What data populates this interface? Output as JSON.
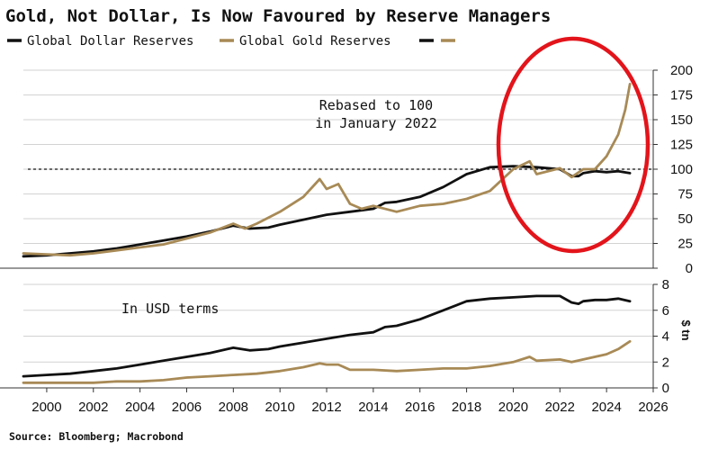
{
  "title": "Gold, Not Dollar, Is Now Favoured by Reserve Managers",
  "source": "Source: Bloomberg; Macrobond",
  "colors": {
    "dollar": "#111111",
    "gold": "#a88a56",
    "highlight": "#e3141b",
    "grid": "#d2d2d2"
  },
  "legend": [
    {
      "label": "Global Dollar Reserves",
      "color": "#111111"
    },
    {
      "label": "Global Gold Reserves",
      "color": "#a88a56"
    }
  ],
  "chart_data": [
    {
      "type": "line",
      "panel": "top",
      "annotation": [
        "Rebased to 100",
        "in January 2022"
      ],
      "reference_line": 100,
      "ylim": [
        0,
        200
      ],
      "yticks": [
        0,
        25,
        50,
        75,
        100,
        125,
        150,
        175,
        200
      ],
      "highlight": "red ellipse around 2019.5–2025.5 region",
      "series": [
        {
          "name": "Global Dollar Reserves",
          "x": [
            1999,
            2000,
            2001,
            2002,
            2003,
            2004,
            2005,
            2006,
            2007,
            2008,
            2008.7,
            2009.5,
            2010,
            2011,
            2012,
            2013,
            2014,
            2014.5,
            2015,
            2016,
            2017,
            2018,
            2019,
            2020,
            2021,
            2022,
            2022.5,
            2022.8,
            2023,
            2023.5,
            2024,
            2024.5,
            2025
          ],
          "values": [
            12,
            13,
            15,
            17,
            20,
            24,
            28,
            32,
            37,
            43,
            40,
            41,
            44,
            49,
            54,
            57,
            60,
            66,
            67,
            72,
            82,
            95,
            102,
            103,
            102,
            100,
            93,
            93,
            96,
            98,
            97,
            98,
            96
          ]
        },
        {
          "name": "Global Gold Reserves",
          "x": [
            1999,
            2000,
            2001,
            2002,
            2003,
            2004,
            2005,
            2006,
            2007,
            2008,
            2008.5,
            2009,
            2010,
            2011,
            2011.7,
            2012,
            2012.5,
            2013,
            2013.5,
            2014,
            2015,
            2016,
            2017,
            2018,
            2019,
            2020,
            2020.7,
            2021,
            2022,
            2022.5,
            2023,
            2023.5,
            2024,
            2024.5,
            2024.8,
            2025
          ],
          "values": [
            15,
            14,
            13,
            15,
            18,
            21,
            24,
            30,
            36,
            45,
            40,
            45,
            57,
            72,
            90,
            80,
            85,
            65,
            60,
            63,
            57,
            63,
            65,
            70,
            78,
            100,
            108,
            95,
            101,
            92,
            100,
            100,
            113,
            135,
            160,
            186
          ]
        }
      ]
    },
    {
      "type": "line",
      "panel": "bottom",
      "annotation": "In USD terms",
      "ylabel": "$ tn",
      "ylim": [
        0,
        8
      ],
      "yticks": [
        0,
        2,
        4,
        6,
        8
      ],
      "xlim": [
        1999,
        2026
      ],
      "xticks": [
        2000,
        2002,
        2004,
        2006,
        2008,
        2010,
        2012,
        2014,
        2016,
        2018,
        2020,
        2022,
        2024,
        2026
      ],
      "series": [
        {
          "name": "Global Dollar Reserves",
          "x": [
            1999,
            2000,
            2001,
            2002,
            2003,
            2004,
            2005,
            2006,
            2007,
            2008,
            2008.7,
            2009.5,
            2010,
            2011,
            2012,
            2013,
            2014,
            2014.5,
            2015,
            2016,
            2017,
            2018,
            2019,
            2020,
            2021,
            2022,
            2022.5,
            2022.8,
            2023,
            2023.5,
            2024,
            2024.5,
            2025
          ],
          "values": [
            0.9,
            1.0,
            1.1,
            1.3,
            1.5,
            1.8,
            2.1,
            2.4,
            2.7,
            3.1,
            2.9,
            3.0,
            3.2,
            3.5,
            3.8,
            4.1,
            4.3,
            4.7,
            4.8,
            5.3,
            6.0,
            6.7,
            6.9,
            7.0,
            7.1,
            7.1,
            6.6,
            6.5,
            6.7,
            6.8,
            6.8,
            6.9,
            6.7
          ]
        },
        {
          "name": "Global Gold Reserves",
          "x": [
            1999,
            2000,
            2001,
            2002,
            2003,
            2004,
            2005,
            2006,
            2007,
            2008,
            2009,
            2010,
            2011,
            2011.7,
            2012,
            2012.5,
            2013,
            2014,
            2015,
            2016,
            2017,
            2018,
            2019,
            2020,
            2020.7,
            2021,
            2022,
            2022.5,
            2023,
            2024,
            2024.5,
            2025
          ],
          "values": [
            0.4,
            0.4,
            0.4,
            0.4,
            0.5,
            0.5,
            0.6,
            0.8,
            0.9,
            1.0,
            1.1,
            1.3,
            1.6,
            1.9,
            1.8,
            1.8,
            1.4,
            1.4,
            1.3,
            1.4,
            1.5,
            1.5,
            1.7,
            2.0,
            2.4,
            2.1,
            2.2,
            2.0,
            2.2,
            2.6,
            3.0,
            3.6
          ]
        }
      ]
    }
  ]
}
